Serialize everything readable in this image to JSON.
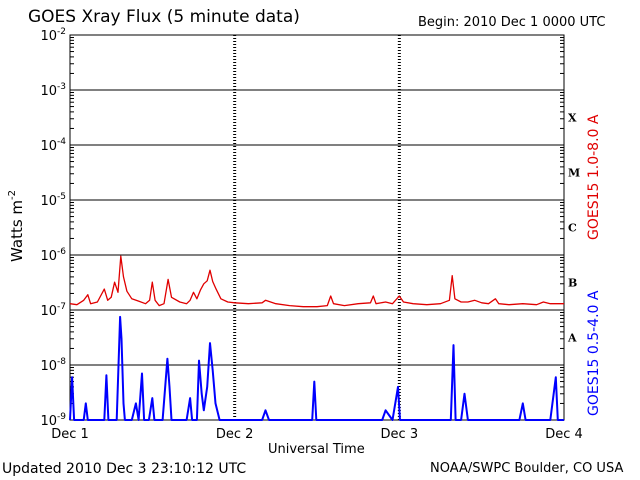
{
  "chart_data": {
    "type": "line",
    "title": "GOES Xray Flux (5 minute data)",
    "begin_label": "Begin:  2010 Dec 1 0000 UTC",
    "updated_label": "Updated 2010 Dec  3 23:10:12 UTC",
    "credit_label": "NOAA/SWPC Boulder, CO USA",
    "xlabel": "Universal Time",
    "ylabel": "Watts m",
    "ylabel_superscript": "-2",
    "yscale": "log",
    "ylim": [
      1e-09,
      0.01
    ],
    "xlim": [
      0,
      72
    ],
    "x_unit": "hours since 2010 Dec 1 0000 UTC",
    "x_ticks": [
      {
        "x": 0,
        "label": "Dec 1"
      },
      {
        "x": 24,
        "label": "Dec 2"
      },
      {
        "x": 48,
        "label": "Dec 3"
      },
      {
        "x": 72,
        "label": "Dec 4"
      }
    ],
    "y_ticks": [
      {
        "exp": -2
      },
      {
        "exp": -3
      },
      {
        "exp": -4
      },
      {
        "exp": -5
      },
      {
        "exp": -6
      },
      {
        "exp": -7
      },
      {
        "exp": -8
      },
      {
        "exp": -9
      }
    ],
    "y_tick_base": "10",
    "flare_classes": [
      {
        "label": "X",
        "exp": -3.5
      },
      {
        "label": "M",
        "exp": -4.5
      },
      {
        "label": "C",
        "exp": -5.5
      },
      {
        "label": "B",
        "exp": -6.5
      },
      {
        "label": "A",
        "exp": -7.5
      }
    ],
    "grid": true,
    "series": [
      {
        "name": "GOES15 1.0-8.0 A",
        "color": "#e00000",
        "points": [
          [
            0,
            1.3e-07
          ],
          [
            1,
            1.25e-07
          ],
          [
            2,
            1.5e-07
          ],
          [
            2.6,
            1.9e-07
          ],
          [
            3,
            1.3e-07
          ],
          [
            4,
            1.4e-07
          ],
          [
            5,
            2.4e-07
          ],
          [
            5.5,
            1.5e-07
          ],
          [
            6,
            1.7e-07
          ],
          [
            6.5,
            3.2e-07
          ],
          [
            7,
            2.1e-07
          ],
          [
            7.4,
            9.5e-07
          ],
          [
            7.8,
            4e-07
          ],
          [
            8.3,
            2.2e-07
          ],
          [
            9,
            1.6e-07
          ],
          [
            10,
            1.45e-07
          ],
          [
            11,
            1.3e-07
          ],
          [
            11.6,
            1.5e-07
          ],
          [
            12,
            3.2e-07
          ],
          [
            12.4,
            1.5e-07
          ],
          [
            13,
            1.2e-07
          ],
          [
            13.7,
            1.3e-07
          ],
          [
            14.3,
            3.6e-07
          ],
          [
            14.8,
            1.7e-07
          ],
          [
            16,
            1.4e-07
          ],
          [
            17,
            1.3e-07
          ],
          [
            17.5,
            1.5e-07
          ],
          [
            18,
            2.1e-07
          ],
          [
            18.5,
            1.6e-07
          ],
          [
            19,
            2.3e-07
          ],
          [
            19.5,
            3e-07
          ],
          [
            20,
            3.4e-07
          ],
          [
            20.4,
            5.3e-07
          ],
          [
            20.8,
            3.3e-07
          ],
          [
            21.3,
            2.4e-07
          ],
          [
            22,
            1.6e-07
          ],
          [
            23,
            1.4e-07
          ],
          [
            24,
            1.35e-07
          ],
          [
            26,
            1.3e-07
          ],
          [
            28,
            1.35e-07
          ],
          [
            28.5,
            1.5e-07
          ],
          [
            30,
            1.3e-07
          ],
          [
            32,
            1.2e-07
          ],
          [
            34,
            1.15e-07
          ],
          [
            36,
            1.15e-07
          ],
          [
            37.5,
            1.2e-07
          ],
          [
            38,
            1.8e-07
          ],
          [
            38.4,
            1.3e-07
          ],
          [
            40,
            1.2e-07
          ],
          [
            42,
            1.3e-07
          ],
          [
            43.8,
            1.35e-07
          ],
          [
            44.2,
            1.8e-07
          ],
          [
            44.6,
            1.3e-07
          ],
          [
            46,
            1.4e-07
          ],
          [
            47,
            1.3e-07
          ],
          [
            48,
            1.8e-07
          ],
          [
            48.6,
            1.4e-07
          ],
          [
            50,
            1.3e-07
          ],
          [
            52,
            1.25e-07
          ],
          [
            54,
            1.3e-07
          ],
          [
            55.3,
            1.5e-07
          ],
          [
            55.7,
            4.2e-07
          ],
          [
            56.1,
            1.6e-07
          ],
          [
            57,
            1.4e-07
          ],
          [
            58,
            1.4e-07
          ],
          [
            59,
            1.5e-07
          ],
          [
            60,
            1.35e-07
          ],
          [
            61,
            1.3e-07
          ],
          [
            62,
            1.6e-07
          ],
          [
            62.5,
            1.3e-07
          ],
          [
            64,
            1.25e-07
          ],
          [
            66,
            1.3e-07
          ],
          [
            68,
            1.25e-07
          ],
          [
            69,
            1.4e-07
          ],
          [
            70,
            1.3e-07
          ],
          [
            71,
            1.3e-07
          ],
          [
            72,
            1.3e-07
          ]
        ]
      },
      {
        "name": "GOES15 0.5-4.0 A",
        "color": "#0000ff",
        "points": [
          [
            0,
            1e-09
          ],
          [
            0.3,
            6e-09
          ],
          [
            0.6,
            1e-09
          ],
          [
            2,
            1e-09
          ],
          [
            2.3,
            2e-09
          ],
          [
            2.6,
            1e-09
          ],
          [
            4,
            1e-09
          ],
          [
            5,
            1e-09
          ],
          [
            5.3,
            6.5e-09
          ],
          [
            5.6,
            1e-09
          ],
          [
            6.8,
            1e-09
          ],
          [
            7.3,
            7.5e-08
          ],
          [
            7.5,
            3e-08
          ],
          [
            7.8,
            2e-09
          ],
          [
            8,
            1e-09
          ],
          [
            9,
            1e-09
          ],
          [
            9.6,
            2e-09
          ],
          [
            10,
            1e-09
          ],
          [
            10.5,
            7e-09
          ],
          [
            10.8,
            1e-09
          ],
          [
            11.5,
            1e-09
          ],
          [
            12,
            2.5e-09
          ],
          [
            12.3,
            1e-09
          ],
          [
            13.5,
            1e-09
          ],
          [
            14.2,
            1.3e-08
          ],
          [
            14.5,
            4e-09
          ],
          [
            14.8,
            1e-09
          ],
          [
            16,
            1e-09
          ],
          [
            17,
            1e-09
          ],
          [
            17.5,
            2.5e-09
          ],
          [
            17.8,
            1e-09
          ],
          [
            18.5,
            1e-09
          ],
          [
            18.8,
            1.2e-08
          ],
          [
            19.2,
            3e-09
          ],
          [
            19.5,
            1.5e-09
          ],
          [
            20,
            4e-09
          ],
          [
            20.4,
            2.5e-08
          ],
          [
            20.8,
            8e-09
          ],
          [
            21.2,
            2e-09
          ],
          [
            21.8,
            1e-09
          ],
          [
            25,
            1e-09
          ],
          [
            26,
            1e-09
          ],
          [
            28,
            1e-09
          ],
          [
            28.5,
            1.5e-09
          ],
          [
            29,
            1e-09
          ],
          [
            32,
            1e-09
          ],
          [
            34,
            1e-09
          ],
          [
            35.3,
            1e-09
          ],
          [
            35.6,
            5e-09
          ],
          [
            35.9,
            1e-09
          ],
          [
            38,
            1e-09
          ],
          [
            39,
            1e-09
          ],
          [
            42,
            1e-09
          ],
          [
            44,
            1e-09
          ],
          [
            45.5,
            1e-09
          ],
          [
            46,
            1.5e-09
          ],
          [
            47,
            1e-09
          ],
          [
            47.8,
            4e-09
          ],
          [
            48.1,
            1e-09
          ],
          [
            52,
            1e-09
          ],
          [
            55.5,
            1e-09
          ],
          [
            55.9,
            2.3e-08
          ],
          [
            56.2,
            1e-09
          ],
          [
            57,
            1e-09
          ],
          [
            57.5,
            3e-09
          ],
          [
            58,
            1e-09
          ],
          [
            59,
            1e-09
          ],
          [
            60,
            1e-09
          ],
          [
            62,
            1e-09
          ],
          [
            64,
            1e-09
          ],
          [
            65.5,
            1e-09
          ],
          [
            66,
            2e-09
          ],
          [
            66.4,
            1e-09
          ],
          [
            68,
            1e-09
          ],
          [
            70,
            1e-09
          ],
          [
            70.8,
            6e-09
          ],
          [
            71.1,
            1e-09
          ],
          [
            72,
            1e-09
          ]
        ]
      }
    ]
  }
}
